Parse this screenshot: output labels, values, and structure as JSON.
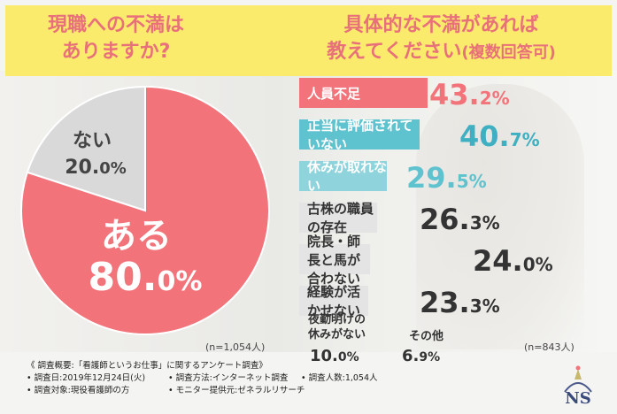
{
  "header": {
    "left_title_line1": "現職への不満は",
    "left_title_line2": "ありますか?",
    "right_title_line1": "具体的な不満があれば",
    "right_title_line2": "教えてください",
    "right_title_suffix": "(複数回答可)"
  },
  "chart_data": [
    {
      "type": "pie",
      "slices": [
        {
          "label": "ある",
          "value": 80.0,
          "display_int": "80.",
          "display_dec": "0%",
          "color": "#f2737a"
        },
        {
          "label": "ない",
          "value": 20.0,
          "display_int": "20.",
          "display_dec": "0%",
          "color": "#d9d9d9"
        }
      ],
      "note": "(n=1,054人)"
    },
    {
      "type": "bar",
      "orientation": "horizontal",
      "categories": [
        "人員不足",
        "正当に評価されていない",
        "休みが取れない",
        "古株の職員の存在",
        "院長・師長と馬が合わない",
        "経験が活かせない",
        "夜勤明けの休みがない",
        "その他"
      ],
      "values": [
        43.2,
        40.7,
        29.5,
        26.3,
        24.0,
        23.3,
        10.0,
        6.9
      ],
      "bars": [
        {
          "label": "人員不足",
          "int": "43.",
          "dec": "2%",
          "color": "#f2737a",
          "text_color": "#ffffff",
          "value_color": "#f2737a"
        },
        {
          "label": "正当に評価されていない",
          "int": "40.",
          "dec": "7%",
          "color": "#5ec2cf",
          "text_color": "#ffffff",
          "value_color": "#3fb0c2"
        },
        {
          "label": "休みが取れない",
          "int": "29.",
          "dec": "5%",
          "color": "#8fd4dc",
          "text_color": "#ffffff",
          "value_color": "#5ec2cf"
        },
        {
          "label": "古株の職員の存在",
          "int": "26.",
          "dec": "3%",
          "color": "#e4e4e4",
          "text_color": "#333333",
          "value_color": "#333333"
        },
        {
          "label": "院長・師長と馬が合わない",
          "int": "24.",
          "dec": "0%",
          "color": "#e4e4e4",
          "text_color": "#333333",
          "value_color": "#333333"
        },
        {
          "label": "経験が活かせない",
          "int": "23.",
          "dec": "3%",
          "color": "#e4e4e4",
          "text_color": "#333333",
          "value_color": "#333333"
        }
      ],
      "extra": [
        {
          "label_line1": "夜勤明けの",
          "label_line2": "休みがない",
          "int": "10.",
          "dec": "0%"
        },
        {
          "label_line1": "その他",
          "label_line2": "",
          "int": "6.",
          "dec": "9%"
        }
      ],
      "note": "(n=843人)"
    }
  ],
  "footer": {
    "overview": "《 調査概要:「看護師というお仕事」に関するアンケート調査》",
    "date": "• 調査日:2019年12月24日(火)",
    "method": "• 調査方法:インターネット調査",
    "count": "• 調査人数:1,054人",
    "target": "• 調査対象:現役看護師の方",
    "provider": "• モニター提供元:ゼネラルリサーチ"
  },
  "logo": {
    "text": "NS",
    "icon": "nurse-cap-logo-icon"
  }
}
